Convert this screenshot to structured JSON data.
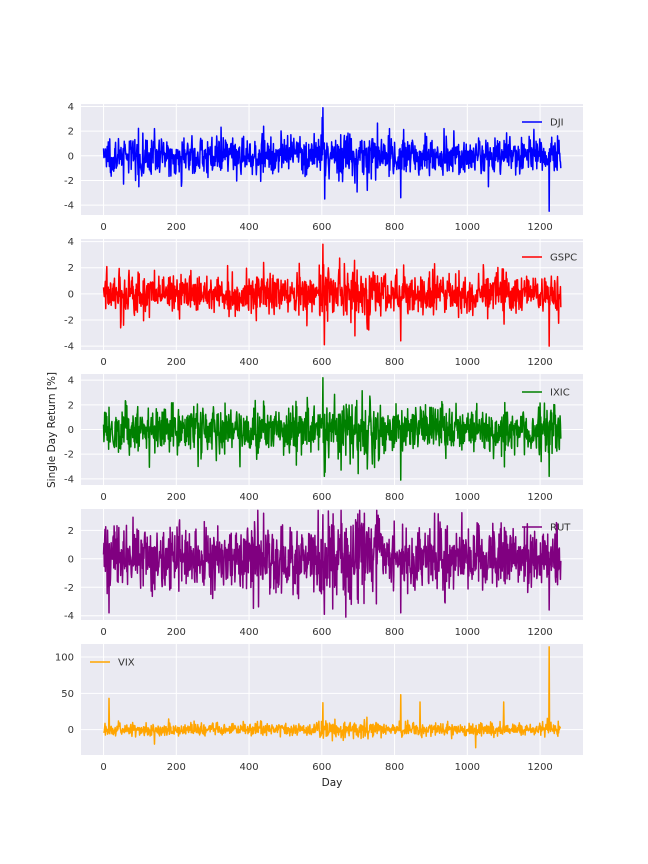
{
  "chart_data": {
    "type": "line",
    "xlabel": "Day",
    "ylabel": "Single Day Return [%]",
    "grid": true,
    "xlim": [
      -62,
      1318
    ],
    "xticks": [
      0,
      200,
      400,
      600,
      800,
      1000,
      1200
    ],
    "points": 1258,
    "panels": [
      {
        "series_name": "DJI",
        "color": "#0000ff",
        "legend_position": "top-right",
        "ylim": [
          -4.8,
          4.2
        ],
        "yticks": [
          -4,
          -2,
          0,
          2,
          4
        ],
        "scale": 0.75,
        "values_key_points": [
          {
            "day": 0,
            "value": 0.6
          },
          {
            "day": 55,
            "value": -2.3
          },
          {
            "day": 140,
            "value": 2.2
          },
          {
            "day": 215,
            "value": -2.1
          },
          {
            "day": 440,
            "value": 2.4
          },
          {
            "day": 603,
            "value": 3.9
          },
          {
            "day": 608,
            "value": -3.5
          },
          {
            "day": 725,
            "value": -2.8
          },
          {
            "day": 817,
            "value": -3.4
          },
          {
            "day": 1225,
            "value": -4.5
          },
          {
            "day": 1232,
            "value": 1.5
          },
          {
            "day": 1258,
            "value": -2.9
          }
        ]
      },
      {
        "series_name": "GSPC",
        "color": "#ff0000",
        "legend_position": "top-right",
        "ylim": [
          -4.3,
          4.2
        ],
        "yticks": [
          -4,
          -2,
          0,
          2,
          4
        ],
        "scale": 0.8,
        "values_key_points": [
          {
            "day": 0,
            "value": 0.5
          },
          {
            "day": 55,
            "value": -2.4
          },
          {
            "day": 140,
            "value": 1.8
          },
          {
            "day": 440,
            "value": 2.4
          },
          {
            "day": 603,
            "value": 3.8
          },
          {
            "day": 607,
            "value": -3.9
          },
          {
            "day": 725,
            "value": -2.7
          },
          {
            "day": 817,
            "value": -3.6
          },
          {
            "day": 910,
            "value": 2.3
          },
          {
            "day": 1225,
            "value": -4.0
          },
          {
            "day": 1258,
            "value": -2.4
          }
        ]
      },
      {
        "series_name": "IXIC",
        "color": "#008000",
        "legend_position": "top-right",
        "ylim": [
          -4.5,
          4.5
        ],
        "yticks": [
          -4,
          -2,
          0,
          2,
          4
        ],
        "scale": 0.95,
        "values_key_points": [
          {
            "day": 0,
            "value": 0.4
          },
          {
            "day": 15,
            "value": 1.8
          },
          {
            "day": 260,
            "value": -3.0
          },
          {
            "day": 440,
            "value": 2.3
          },
          {
            "day": 603,
            "value": 4.2
          },
          {
            "day": 607,
            "value": -3.8
          },
          {
            "day": 725,
            "value": -3.2
          },
          {
            "day": 817,
            "value": -4.1
          },
          {
            "day": 1225,
            "value": -3.8
          },
          {
            "day": 1258,
            "value": -2.3
          }
        ]
      },
      {
        "series_name": "RUT",
        "color": "#800080",
        "legend_position": "top-right",
        "ylim": [
          -4.3,
          3.5
        ],
        "yticks": [
          -4,
          -2,
          0,
          2
        ],
        "scale": 1.1,
        "values_key_points": [
          {
            "day": 0,
            "value": 0.3
          },
          {
            "day": 15,
            "value": -3.8
          },
          {
            "day": 440,
            "value": 3.2
          },
          {
            "day": 603,
            "value": 3.1
          },
          {
            "day": 607,
            "value": -3.9
          },
          {
            "day": 717,
            "value": 3.2
          },
          {
            "day": 817,
            "value": -3.8
          },
          {
            "day": 910,
            "value": 3.2
          },
          {
            "day": 1225,
            "value": -3.6
          },
          {
            "day": 1258,
            "value": -2.2
          }
        ]
      },
      {
        "series_name": "VIX",
        "color": "#ffa500",
        "legend_position": "top-left",
        "ylim": [
          -35,
          118
        ],
        "yticks": [
          0,
          50,
          100
        ],
        "scale": 5,
        "values_key_points": [
          {
            "day": 0,
            "value": -3
          },
          {
            "day": 15,
            "value": 43
          },
          {
            "day": 140,
            "value": -20
          },
          {
            "day": 603,
            "value": 37
          },
          {
            "day": 817,
            "value": 48
          },
          {
            "day": 870,
            "value": 38
          },
          {
            "day": 1023,
            "value": -25
          },
          {
            "day": 1100,
            "value": 38
          },
          {
            "day": 1225,
            "value": 114
          },
          {
            "day": 1258,
            "value": 30
          }
        ]
      }
    ]
  }
}
